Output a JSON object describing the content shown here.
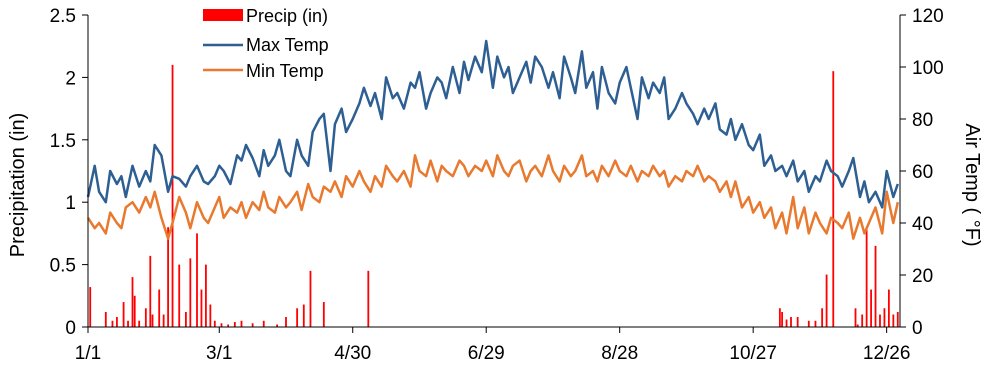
{
  "chart_data": {
    "type": "line",
    "title": "",
    "x_ticks": [
      "1/1",
      "3/1",
      "4/30",
      "6/29",
      "8/28",
      "10/27",
      "12/26"
    ],
    "x_tick_days": [
      1,
      60,
      120,
      180,
      240,
      300,
      360
    ],
    "xlim": [
      1,
      366
    ],
    "y_left": {
      "label": "Precipitation (in)",
      "ylim": [
        0,
        2.5
      ],
      "ticks": [
        "0",
        "0.5",
        "1",
        "1.5",
        "2",
        "2.5"
      ]
    },
    "y_right": {
      "label": "Air Temp ( °F)",
      "ylim": [
        0,
        120
      ],
      "ticks": [
        "0",
        "20",
        "40",
        "60",
        "80",
        "100",
        "120"
      ]
    },
    "legend": {
      "placement": "top-center",
      "entries": [
        "Precip (in)",
        "Max Temp",
        "Min Temp"
      ]
    },
    "grid": false,
    "series": [
      {
        "name": "Precip (in)",
        "type": "bar",
        "axis": "left",
        "color": "#ff0000",
        "day": [
          2,
          9,
          12,
          14,
          17,
          19,
          21,
          22,
          24,
          27,
          29,
          30,
          33,
          35,
          37,
          39,
          42,
          45,
          47,
          50,
          52,
          54,
          56,
          58,
          61,
          64,
          67,
          70,
          75,
          80,
          86,
          90,
          95,
          98,
          101,
          107,
          127,
          312,
          313,
          315,
          317,
          320,
          325,
          328,
          331,
          333,
          336,
          346,
          347,
          349,
          351,
          353,
          355,
          357,
          359,
          361,
          363,
          365
        ],
        "values": [
          0.32,
          0.12,
          0.05,
          0.08,
          0.2,
          0.05,
          0.4,
          0.25,
          0.05,
          0.15,
          0.57,
          0.1,
          0.3,
          0.1,
          0.8,
          2.1,
          0.5,
          0.12,
          0.55,
          0.75,
          0.3,
          0.5,
          0.18,
          0.05,
          0.03,
          0.02,
          0.04,
          0.05,
          0.03,
          0.05,
          0.02,
          0.08,
          0.15,
          0.18,
          0.45,
          0.2,
          0.45,
          0.15,
          0.12,
          0.06,
          0.08,
          0.08,
          0.05,
          0.05,
          0.15,
          0.42,
          2.05,
          0.15,
          0.02,
          0.1,
          0.8,
          0.3,
          0.65,
          0.1,
          0.15,
          0.3,
          0.1,
          0.12
        ]
      },
      {
        "name": "Max Temp",
        "type": "line",
        "axis": "right",
        "color": "#2e5f93",
        "day": [
          1,
          4,
          6,
          9,
          11,
          14,
          16,
          18,
          21,
          24,
          27,
          29,
          31,
          34,
          37,
          39,
          42,
          45,
          47,
          50,
          53,
          55,
          58,
          60,
          62,
          65,
          68,
          70,
          72,
          75,
          78,
          80,
          82,
          85,
          87,
          90,
          92,
          95,
          97,
          100,
          102,
          105,
          107,
          110,
          112,
          115,
          117,
          120,
          123,
          125,
          128,
          130,
          133,
          135,
          138,
          140,
          143,
          146,
          148,
          150,
          153,
          155,
          158,
          160,
          162,
          165,
          168,
          170,
          172,
          175,
          178,
          180,
          183,
          185,
          188,
          190,
          192,
          195,
          198,
          200,
          202,
          205,
          208,
          210,
          213,
          215,
          218,
          220,
          223,
          225,
          228,
          230,
          232,
          235,
          238,
          240,
          243,
          245,
          248,
          250,
          253,
          255,
          258,
          260,
          262,
          265,
          268,
          270,
          273,
          275,
          278,
          280,
          283,
          285,
          288,
          290,
          292,
          295,
          298,
          300,
          303,
          305,
          308,
          310,
          313,
          315,
          318,
          320,
          323,
          325,
          328,
          330,
          333,
          335,
          338,
          340,
          343,
          345,
          348,
          350,
          352,
          355,
          358,
          360,
          363,
          365
        ],
        "values": [
          50,
          62,
          52,
          48,
          60,
          55,
          58,
          50,
          62,
          54,
          60,
          56,
          70,
          66,
          52,
          58,
          57,
          54,
          58,
          62,
          56,
          55,
          58,
          62,
          60,
          55,
          66,
          64,
          70,
          65,
          58,
          68,
          62,
          66,
          72,
          60,
          58,
          72,
          66,
          62,
          75,
          80,
          82,
          60,
          78,
          84,
          75,
          80,
          86,
          92,
          85,
          90,
          80,
          96,
          88,
          90,
          84,
          94,
          92,
          98,
          84,
          90,
          96,
          94,
          88,
          100,
          90,
          102,
          95,
          104,
          98,
          110,
          92,
          104,
          96,
          100,
          90,
          96,
          102,
          94,
          104,
          100,
          92,
          98,
          88,
          104,
          96,
          90,
          106,
          92,
          98,
          84,
          100,
          90,
          86,
          94,
          100,
          92,
          80,
          96,
          88,
          94,
          90,
          96,
          80,
          84,
          90,
          86,
          82,
          78,
          84,
          80,
          86,
          76,
          74,
          80,
          72,
          78,
          70,
          68,
          74,
          62,
          66,
          60,
          62,
          58,
          64,
          56,
          60,
          52,
          58,
          56,
          64,
          60,
          58,
          54,
          60,
          65,
          50,
          56,
          48,
          52,
          46,
          60,
          50,
          55
        ]
      },
      {
        "name": "Min Temp",
        "type": "line",
        "axis": "right",
        "color": "#e8792e",
        "day": [
          1,
          4,
          6,
          9,
          11,
          14,
          16,
          18,
          21,
          24,
          27,
          29,
          31,
          34,
          37,
          39,
          42,
          45,
          47,
          50,
          53,
          55,
          58,
          60,
          62,
          65,
          68,
          70,
          72,
          75,
          78,
          80,
          82,
          85,
          87,
          90,
          92,
          95,
          97,
          100,
          102,
          105,
          107,
          110,
          112,
          115,
          117,
          120,
          123,
          125,
          128,
          130,
          133,
          135,
          138,
          140,
          143,
          146,
          148,
          150,
          153,
          155,
          158,
          160,
          162,
          165,
          168,
          170,
          172,
          175,
          178,
          180,
          183,
          185,
          188,
          190,
          192,
          195,
          198,
          200,
          202,
          205,
          208,
          210,
          213,
          215,
          218,
          220,
          223,
          225,
          228,
          230,
          232,
          235,
          238,
          240,
          243,
          245,
          248,
          250,
          253,
          255,
          258,
          260,
          262,
          265,
          268,
          270,
          273,
          275,
          278,
          280,
          283,
          285,
          288,
          290,
          292,
          295,
          298,
          300,
          303,
          305,
          308,
          310,
          313,
          315,
          318,
          320,
          323,
          325,
          328,
          330,
          333,
          335,
          338,
          340,
          343,
          345,
          348,
          350,
          352,
          355,
          358,
          360,
          363,
          365
        ],
        "values": [
          42,
          38,
          40,
          36,
          44,
          40,
          38,
          46,
          48,
          44,
          50,
          46,
          52,
          42,
          34,
          40,
          50,
          44,
          38,
          48,
          42,
          40,
          46,
          50,
          42,
          46,
          44,
          48,
          42,
          48,
          45,
          52,
          46,
          44,
          50,
          46,
          48,
          52,
          45,
          55,
          50,
          48,
          54,
          52,
          56,
          50,
          58,
          54,
          60,
          56,
          52,
          58,
          54,
          62,
          58,
          56,
          60,
          54,
          66,
          60,
          58,
          64,
          56,
          62,
          60,
          58,
          64,
          62,
          58,
          62,
          60,
          64,
          58,
          66,
          60,
          58,
          62,
          64,
          56,
          60,
          62,
          58,
          66,
          60,
          56,
          62,
          58,
          60,
          66,
          58,
          60,
          56,
          62,
          58,
          64,
          60,
          58,
          62,
          56,
          60,
          58,
          62,
          58,
          60,
          54,
          58,
          56,
          60,
          58,
          62,
          56,
          58,
          56,
          52,
          56,
          50,
          56,
          46,
          50,
          44,
          48,
          42,
          46,
          38,
          44,
          36,
          50,
          38,
          46,
          36,
          44,
          40,
          36,
          42,
          40,
          38,
          44,
          34,
          42,
          36,
          40,
          46,
          36,
          52,
          40,
          48
        ]
      }
    ]
  }
}
